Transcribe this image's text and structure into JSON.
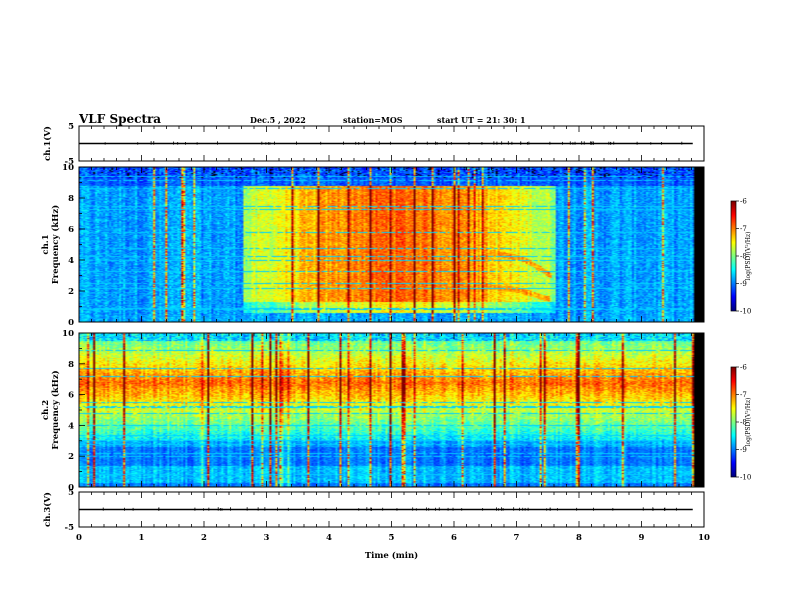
{
  "header": {
    "title": "VLF Spectra",
    "date": "Dec.5 , 2022",
    "station": "station=MOS",
    "start": "start UT =  21: 30: 1"
  },
  "chart_data": {
    "type": "heatmap",
    "xlabel": "Time (min)",
    "xlim": [
      0,
      10
    ],
    "x_ticks": [
      "0",
      "1",
      "2",
      "3",
      "4",
      "5",
      "6",
      "7",
      "8",
      "9",
      "10"
    ],
    "data_end_min": 9.82,
    "panels": [
      {
        "id": "ch1-wave",
        "ylabel": "ch.1(V)",
        "ylim": [
          -5,
          5
        ],
        "y_ticks": [
          "5",
          "-5"
        ],
        "trace_level": 0
      },
      {
        "id": "ch1-spec",
        "ylabel_top": "ch.1",
        "ylabel": "Frequency (kHz)",
        "ylim": [
          0,
          10
        ],
        "y_ticks": [
          "0",
          "2",
          "4",
          "6",
          "8",
          "10"
        ],
        "band_top_khz": 8.8,
        "chorus_end_min": 7.6,
        "dispersed_tones": [
          {
            "t": [
              6.05,
              6.5,
              7.0,
              7.5
            ],
            "f": [
              1.8,
              2.3,
              2.1,
              1.5
            ]
          },
          {
            "t": [
              6.1,
              6.6,
              7.1,
              7.55
            ],
            "f": [
              3.4,
              4.5,
              4.1,
              3.0
            ]
          }
        ]
      },
      {
        "id": "ch2-spec",
        "ylabel_top": "ch.2",
        "ylabel": "Frequency (kHz)",
        "ylim": [
          0,
          10
        ],
        "y_ticks": [
          "0",
          "2",
          "4",
          "6",
          "8",
          "10"
        ],
        "band_center_khz": 6.8
      },
      {
        "id": "ch3-wave",
        "ylabel": "ch.3(V)",
        "ylim": [
          -5,
          5
        ],
        "y_ticks": [
          "5",
          "-5"
        ],
        "trace_level": 0
      }
    ],
    "colorbar": {
      "label": "log(PSD)(V²/Hz)",
      "range": [
        -10,
        -6
      ],
      "ticks": [
        "-6",
        "-7",
        "-8",
        "-9",
        "-10"
      ],
      "colormap": "jet"
    }
  }
}
